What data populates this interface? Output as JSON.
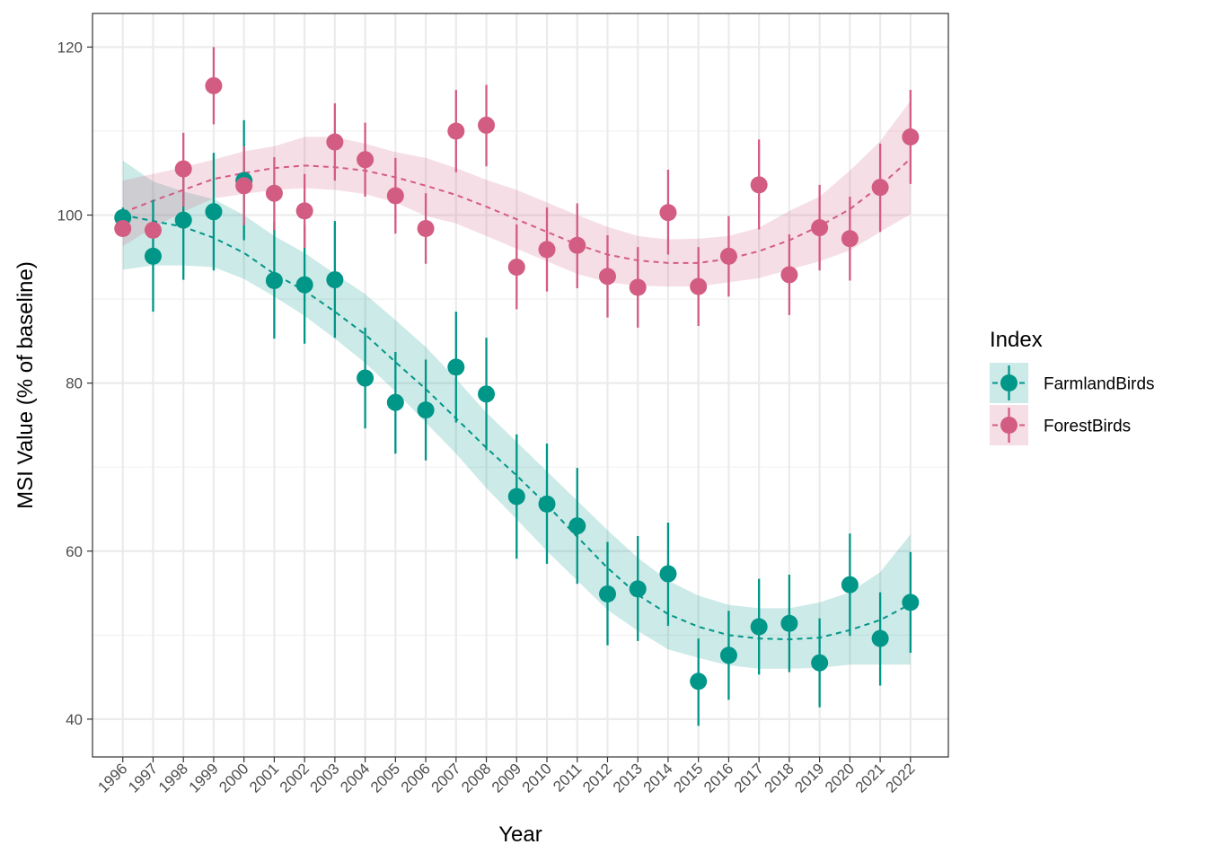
{
  "chart_data": {
    "type": "scatter",
    "xlabel": "Year",
    "ylabel": "MSI Value (% of baseline)",
    "xlim": [
      1995,
      2023.25
    ],
    "ylim": [
      35.5,
      124
    ],
    "x_ticks": [
      1996,
      1997,
      1998,
      1999,
      2000,
      2001,
      2002,
      2003,
      2004,
      2005,
      2006,
      2007,
      2008,
      2009,
      2010,
      2011,
      2012,
      2013,
      2014,
      2015,
      2016,
      2017,
      2018,
      2019,
      2020,
      2021,
      2022
    ],
    "y_ticks": [
      40,
      60,
      80,
      100,
      120
    ],
    "grid": true,
    "legend": {
      "title": "Index",
      "position": "right"
    },
    "series": [
      {
        "name": "FarmlandBirds",
        "color": "#009688",
        "x": [
          1996,
          1997,
          1998,
          1999,
          2000,
          2001,
          2002,
          2003,
          2004,
          2005,
          2006,
          2007,
          2008,
          2009,
          2010,
          2011,
          2012,
          2013,
          2014,
          2015,
          2016,
          2017,
          2018,
          2019,
          2020,
          2021,
          2022
        ],
        "y": [
          99.7,
          95.1,
          99.4,
          100.4,
          104.1,
          92.2,
          91.7,
          92.3,
          80.6,
          77.7,
          76.8,
          81.9,
          78.7,
          66.5,
          65.6,
          63.0,
          54.9,
          55.5,
          57.3,
          44.5,
          47.6,
          51.0,
          51.4,
          46.7,
          56.0,
          49.6,
          53.9
        ],
        "lower": [
          98.5,
          88.5,
          92.3,
          93.4,
          97.0,
          85.3,
          84.7,
          85.4,
          74.6,
          71.6,
          70.8,
          75.3,
          72.0,
          59.1,
          58.5,
          56.1,
          48.8,
          49.3,
          51.1,
          39.2,
          42.3,
          45.3,
          45.6,
          41.4,
          49.9,
          44.0,
          47.9
        ],
        "upper": [
          100.9,
          101.8,
          106.3,
          107.4,
          111.3,
          99.2,
          98.8,
          99.3,
          86.6,
          83.7,
          82.8,
          88.5,
          85.4,
          73.9,
          72.8,
          69.9,
          61.1,
          61.8,
          63.4,
          49.6,
          52.9,
          56.7,
          57.2,
          52.0,
          62.1,
          55.1,
          59.9
        ],
        "trend": [
          100.0,
          99.3,
          98.6,
          97.3,
          95.5,
          93.0,
          91.0,
          88.5,
          85.8,
          82.5,
          79.3,
          75.8,
          72.3,
          69.0,
          65.5,
          61.7,
          58.0,
          54.8,
          52.5,
          51.0,
          50.0,
          49.6,
          49.5,
          49.7,
          50.6,
          51.8,
          53.7
        ],
        "trend_lower": [
          93.5,
          94.0,
          94.0,
          93.8,
          92.4,
          90.3,
          88.0,
          85.3,
          82.4,
          79.0,
          75.3,
          71.6,
          67.5,
          63.8,
          60.0,
          56.5,
          53.0,
          50.5,
          48.3,
          47.3,
          46.4,
          46.0,
          46.0,
          46.1,
          46.5,
          46.5,
          46.5
        ],
        "trend_upper": [
          106.5,
          104.0,
          102.8,
          101.9,
          100.0,
          97.5,
          95.5,
          93.0,
          90.6,
          87.5,
          84.3,
          80.5,
          76.5,
          73.0,
          69.5,
          66.0,
          62.5,
          59.2,
          56.5,
          54.7,
          53.6,
          53.2,
          53.2,
          53.9,
          55.1,
          57.5,
          62.0
        ]
      },
      {
        "name": "ForestBirds",
        "color": "#d35c82",
        "x": [
          1996,
          1997,
          1998,
          1999,
          2000,
          2001,
          2002,
          2003,
          2004,
          2005,
          2006,
          2007,
          2008,
          2009,
          2010,
          2011,
          2012,
          2013,
          2014,
          2015,
          2016,
          2017,
          2018,
          2019,
          2020,
          2021,
          2022
        ],
        "y": [
          98.4,
          98.2,
          105.5,
          115.4,
          103.5,
          102.6,
          100.5,
          108.7,
          106.6,
          102.3,
          98.4,
          110.0,
          110.7,
          93.8,
          95.9,
          96.4,
          92.7,
          91.4,
          100.3,
          91.5,
          95.1,
          103.6,
          92.9,
          98.5,
          97.2,
          103.3,
          109.3
        ],
        "lower": [
          97.6,
          97.5,
          101.0,
          110.8,
          98.8,
          98.2,
          96.1,
          104.1,
          102.2,
          97.8,
          94.2,
          105.1,
          105.8,
          88.8,
          90.9,
          91.3,
          87.8,
          86.6,
          95.3,
          86.8,
          90.3,
          98.3,
          88.1,
          93.4,
          92.2,
          98.0,
          103.7
        ],
        "upper": [
          99.2,
          98.9,
          109.8,
          120.0,
          108.2,
          106.9,
          104.9,
          113.3,
          111.0,
          106.8,
          102.6,
          114.9,
          115.5,
          98.9,
          100.9,
          101.4,
          97.6,
          96.2,
          105.4,
          96.2,
          99.9,
          109.0,
          97.7,
          103.6,
          102.2,
          108.5,
          114.9
        ],
        "trend": [
          100.3,
          101.7,
          103.0,
          104.3,
          105.0,
          105.6,
          105.9,
          105.7,
          105.3,
          104.5,
          103.5,
          102.4,
          101.0,
          99.5,
          98.0,
          96.5,
          95.3,
          94.6,
          94.3,
          94.3,
          94.8,
          95.7,
          97.0,
          98.7,
          100.7,
          103.5,
          106.7
        ],
        "trend_lower": [
          96.3,
          98.5,
          100.4,
          102.0,
          102.5,
          103.0,
          103.2,
          103.0,
          102.5,
          101.5,
          99.9,
          99.0,
          97.5,
          96.0,
          94.5,
          93.0,
          92.0,
          91.6,
          91.5,
          91.5,
          92.0,
          92.5,
          93.5,
          94.5,
          95.8,
          98.0,
          100.1
        ],
        "trend_upper": [
          104.1,
          104.9,
          105.7,
          106.6,
          107.6,
          108.2,
          109.3,
          109.3,
          108.5,
          107.5,
          106.8,
          105.6,
          104.2,
          103.0,
          101.5,
          100.0,
          98.6,
          97.5,
          97.1,
          97.2,
          97.5,
          98.5,
          100.5,
          102.2,
          105.3,
          108.8,
          113.6
        ]
      }
    ]
  }
}
